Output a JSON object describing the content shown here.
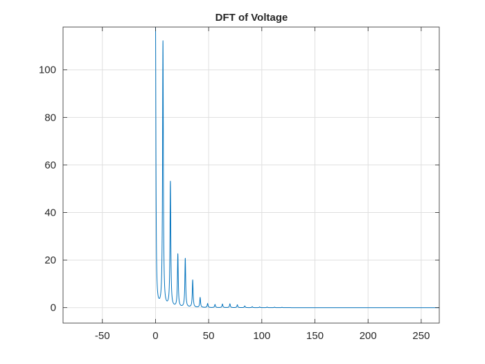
{
  "chart_data": {
    "type": "line",
    "title": "DFT of Voltage",
    "xlabel": "",
    "ylabel": "",
    "xlim": [
      -87,
      267
    ],
    "ylim": [
      -6.5,
      118
    ],
    "xticks": [
      -50,
      0,
      50,
      100,
      150,
      200,
      250
    ],
    "yticks": [
      0,
      20,
      40,
      60,
      80,
      100
    ],
    "grid": true,
    "colors": {
      "line": "#0072BD",
      "grid": "#DFDFDF",
      "axis": "#262626"
    },
    "series": [
      {
        "name": "",
        "peaks": [
          {
            "x": 0,
            "y": 118
          },
          {
            "x": 7,
            "y": 111.5
          },
          {
            "x": 14,
            "y": 52.5
          },
          {
            "x": 21,
            "y": 22.2
          },
          {
            "x": 28,
            "y": 20.5
          },
          {
            "x": 35,
            "y": 11.5
          },
          {
            "x": 42,
            "y": 4.2
          },
          {
            "x": 49,
            "y": 1.7
          },
          {
            "x": 56,
            "y": 1.3
          },
          {
            "x": 63,
            "y": 1.5
          },
          {
            "x": 70,
            "y": 1.6
          },
          {
            "x": 77,
            "y": 1.2
          },
          {
            "x": 84,
            "y": 0.7
          },
          {
            "x": 91,
            "y": 0.4
          },
          {
            "x": 98,
            "y": 0.3
          },
          {
            "x": 105,
            "y": 0.25
          },
          {
            "x": 112,
            "y": 0.2
          },
          {
            "x": 119,
            "y": 0.15
          }
        ],
        "x_range": [
          0,
          267
        ]
      }
    ]
  }
}
